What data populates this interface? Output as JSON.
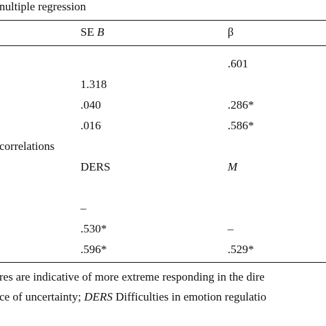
{
  "caption": "nultiple regression",
  "headers": {
    "se_b_prefix": "SE ",
    "se_b_var": "B",
    "beta": "β"
  },
  "regression_rows": [
    {
      "se_b": "",
      "beta": ".601"
    },
    {
      "se_b": "1.318",
      "beta": ""
    },
    {
      "se_b": ".040",
      "beta": ".286*"
    },
    {
      "se_b": ".016",
      "beta": ".586*"
    }
  ],
  "correlations_label": "correlations",
  "correlation_headers": {
    "ders": "DERS",
    "m": "M"
  },
  "correlation_rows": [
    {
      "se_b": "–",
      "beta": ""
    },
    {
      "se_b": ".530*",
      "beta": "–"
    },
    {
      "se_b": ".596*",
      "beta": ".529*"
    }
  ],
  "notes": {
    "line1": "res are indicative of more extreme responding in the dire",
    "line2_prefix": "ce of uncertainty; ",
    "line2_italic": "DERS",
    "line2_suffix": " Difficulties in emotion regulatio"
  }
}
